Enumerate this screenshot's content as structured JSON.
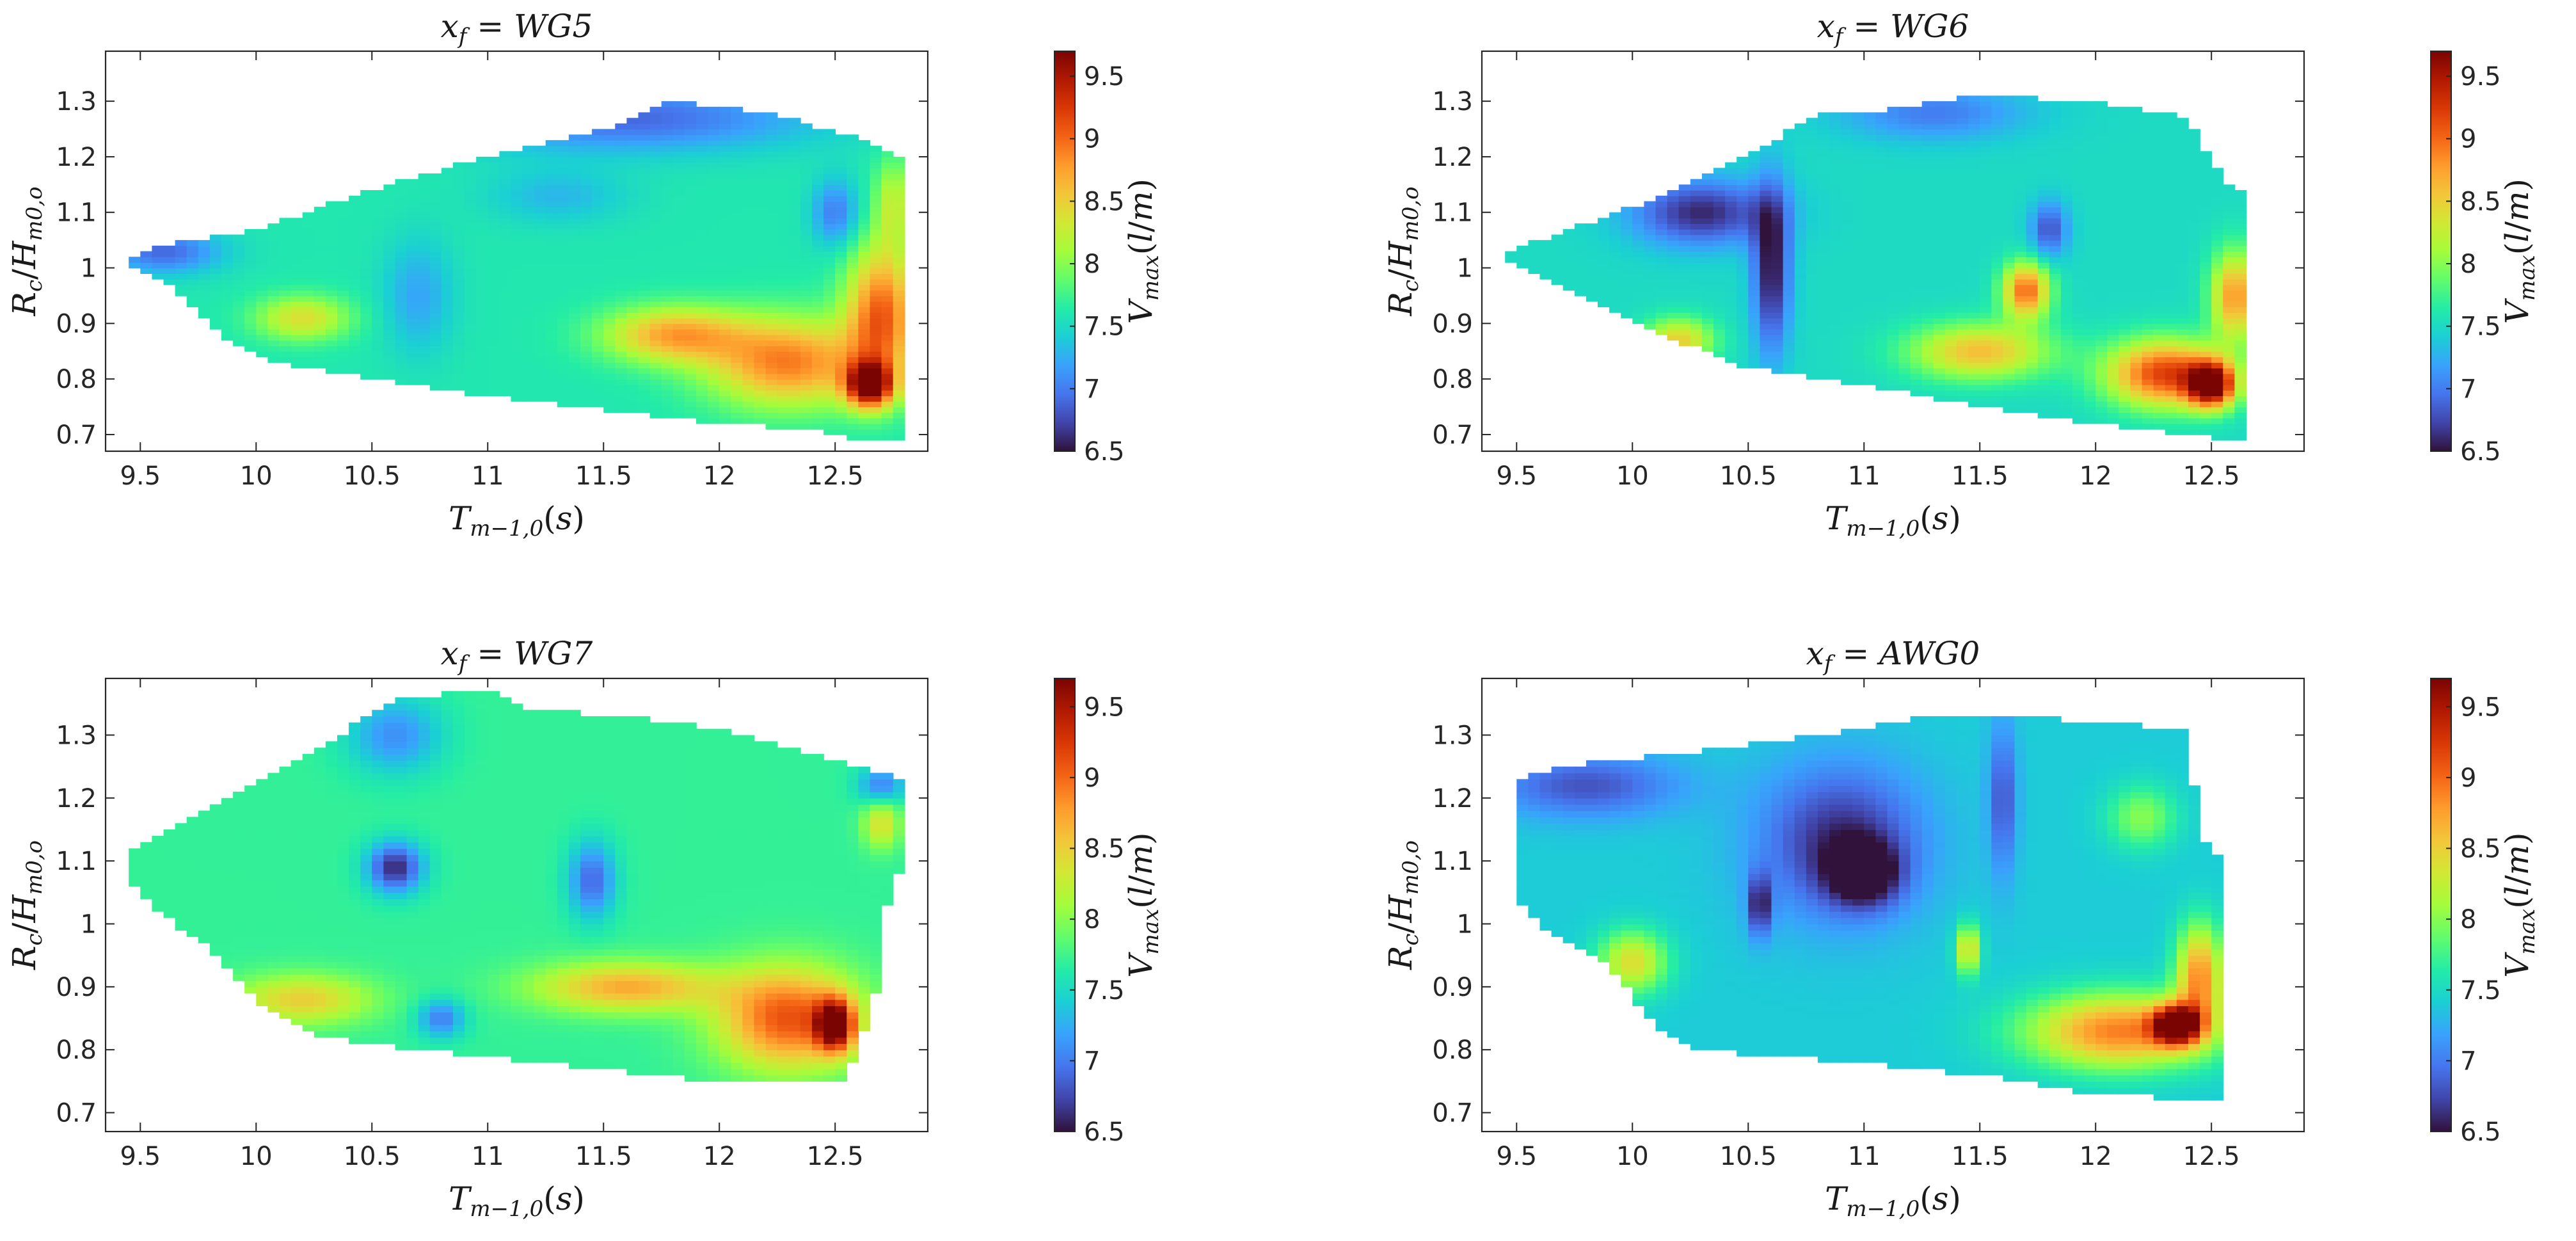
{
  "colormap": {
    "name": "turbo",
    "stops": [
      "#30123b",
      "#4145ab",
      "#4675ed",
      "#39a2fc",
      "#1bcfd4",
      "#24eca6",
      "#61fc6c",
      "#a4fc3b",
      "#d1e834",
      "#f3c63a",
      "#fe9b2d",
      "#f36315",
      "#d93806",
      "#b11901",
      "#7a0402"
    ]
  },
  "colorbar": {
    "label": "V_max(l/m)",
    "ticks": [
      "6.5",
      "7",
      "7.5",
      "8",
      "8.5",
      "9",
      "9.5"
    ]
  },
  "chart_data": [
    {
      "type": "heatmap",
      "title": "x_f = WG5",
      "xlabel": "T_{m-1,0}(s)",
      "ylabel": "R_c/H_{m0,o}",
      "xlim": [
        9.35,
        12.9
      ],
      "ylim": [
        0.67,
        1.39
      ],
      "xticks": [
        9.5,
        10,
        10.5,
        11,
        11.5,
        12,
        12.5
      ],
      "yticks": [
        0.7,
        0.8,
        0.9,
        1.0,
        1.1,
        1.2,
        1.3
      ],
      "clim": [
        6.5,
        9.7
      ],
      "colorbar_ticks": [
        6.5,
        7,
        7.5,
        8,
        8.5,
        9,
        9.5
      ],
      "envelope": {
        "x": [
          9.45,
          12.8
        ],
        "upper": [
          [
            9.45,
            1.02
          ],
          [
            9.6,
            1.04
          ],
          [
            10.0,
            1.07
          ],
          [
            10.5,
            1.14
          ],
          [
            11.0,
            1.2
          ],
          [
            11.5,
            1.25
          ],
          [
            11.8,
            1.3
          ],
          [
            12.2,
            1.28
          ],
          [
            12.55,
            1.24
          ],
          [
            12.8,
            1.2
          ]
        ],
        "lower": [
          [
            9.45,
            1.01
          ],
          [
            9.6,
            0.98
          ],
          [
            9.85,
            0.88
          ],
          [
            10.1,
            0.83
          ],
          [
            10.5,
            0.8
          ],
          [
            11.0,
            0.77
          ],
          [
            11.5,
            0.745
          ],
          [
            12.0,
            0.72
          ],
          [
            12.4,
            0.71
          ],
          [
            12.6,
            0.69
          ],
          [
            12.8,
            0.69
          ]
        ]
      },
      "base": 7.6,
      "features": [
        {
          "x": 9.6,
          "y": 1.03,
          "v": 6.9,
          "sx": 0.25,
          "sy": 0.04
        },
        {
          "x": 11.6,
          "y": 1.27,
          "v": 6.9,
          "sx": 0.8,
          "sy": 0.06
        },
        {
          "x": 11.3,
          "y": 1.13,
          "v": 7.3,
          "sx": 0.3,
          "sy": 0.05
        },
        {
          "x": 10.2,
          "y": 0.91,
          "v": 8.4,
          "sx": 0.2,
          "sy": 0.04
        },
        {
          "x": 11.8,
          "y": 0.88,
          "v": 8.7,
          "sx": 0.3,
          "sy": 0.05
        },
        {
          "x": 12.3,
          "y": 0.83,
          "v": 8.9,
          "sx": 0.35,
          "sy": 0.08
        },
        {
          "x": 12.65,
          "y": 0.79,
          "v": 9.6,
          "sx": 0.1,
          "sy": 0.04
        },
        {
          "x": 12.7,
          "y": 0.92,
          "v": 9.0,
          "sx": 0.15,
          "sy": 0.12
        },
        {
          "x": 12.5,
          "y": 1.1,
          "v": 7.0,
          "sx": 0.1,
          "sy": 0.06
        },
        {
          "x": 12.75,
          "y": 1.12,
          "v": 8.2,
          "sx": 0.08,
          "sy": 0.08
        },
        {
          "x": 10.7,
          "y": 0.95,
          "v": 7.2,
          "sx": 0.15,
          "sy": 0.1
        }
      ]
    },
    {
      "type": "heatmap",
      "title": "x_f = WG6",
      "xlabel": "T_{m-1,0}(s)",
      "ylabel": "R_c/H_{m0,o}",
      "xlim": [
        9.35,
        12.9
      ],
      "ylim": [
        0.67,
        1.39
      ],
      "xticks": [
        9.5,
        10,
        10.5,
        11,
        11.5,
        12,
        12.5
      ],
      "yticks": [
        0.7,
        0.8,
        0.9,
        1.0,
        1.1,
        1.2,
        1.3
      ],
      "clim": [
        6.5,
        9.7
      ],
      "colorbar_ticks": [
        6.5,
        7,
        7.5,
        8,
        8.5,
        9,
        9.5
      ],
      "envelope": {
        "x": [
          9.4,
          12.65
        ],
        "upper": [
          [
            9.4,
            1.02
          ],
          [
            9.6,
            1.05
          ],
          [
            10.0,
            1.11
          ],
          [
            10.5,
            1.2
          ],
          [
            10.8,
            1.28
          ],
          [
            11.0,
            1.28
          ],
          [
            11.5,
            1.31
          ],
          [
            12.0,
            1.3
          ],
          [
            12.4,
            1.27
          ],
          [
            12.55,
            1.16
          ],
          [
            12.65,
            1.13
          ]
        ],
        "lower": [
          [
            9.4,
            1.02
          ],
          [
            9.6,
            0.99
          ],
          [
            10.0,
            0.9
          ],
          [
            10.5,
            0.82
          ],
          [
            11.0,
            0.79
          ],
          [
            11.5,
            0.75
          ],
          [
            12.0,
            0.72
          ],
          [
            12.4,
            0.7
          ],
          [
            12.65,
            0.69
          ]
        ]
      },
      "base": 7.5,
      "features": [
        {
          "x": 10.3,
          "y": 1.1,
          "v": 6.6,
          "sx": 0.3,
          "sy": 0.06
        },
        {
          "x": 10.6,
          "y": 1.0,
          "v": 6.5,
          "sx": 0.08,
          "sy": 0.15
        },
        {
          "x": 10.2,
          "y": 0.87,
          "v": 8.5,
          "sx": 0.15,
          "sy": 0.04
        },
        {
          "x": 11.7,
          "y": 0.96,
          "v": 9.0,
          "sx": 0.1,
          "sy": 0.05
        },
        {
          "x": 11.5,
          "y": 0.85,
          "v": 8.6,
          "sx": 0.3,
          "sy": 0.05
        },
        {
          "x": 12.3,
          "y": 0.81,
          "v": 9.2,
          "sx": 0.25,
          "sy": 0.06
        },
        {
          "x": 12.5,
          "y": 0.79,
          "v": 9.6,
          "sx": 0.1,
          "sy": 0.04
        },
        {
          "x": 12.6,
          "y": 0.95,
          "v": 8.8,
          "sx": 0.1,
          "sy": 0.08
        },
        {
          "x": 11.8,
          "y": 1.07,
          "v": 6.8,
          "sx": 0.08,
          "sy": 0.05
        },
        {
          "x": 11.3,
          "y": 1.28,
          "v": 7.0,
          "sx": 0.4,
          "sy": 0.05
        }
      ]
    },
    {
      "type": "heatmap",
      "title": "x_f = WG7",
      "xlabel": "T_{m-1,0}(s)",
      "ylabel": "R_c/H_{m0,o}",
      "xlim": [
        9.35,
        12.9
      ],
      "ylim": [
        0.67,
        1.39
      ],
      "xticks": [
        9.5,
        10,
        10.5,
        11,
        11.5,
        12,
        12.5
      ],
      "yticks": [
        0.7,
        0.8,
        0.9,
        1.0,
        1.1,
        1.2,
        1.3
      ],
      "clim": [
        6.5,
        9.7
      ],
      "colorbar_ticks": [
        6.5,
        7,
        7.5,
        8,
        8.5,
        9,
        9.5
      ],
      "envelope": {
        "x": [
          9.45,
          12.8
        ],
        "upper": [
          [
            9.45,
            1.12
          ],
          [
            9.8,
            1.18
          ],
          [
            10.2,
            1.26
          ],
          [
            10.6,
            1.36
          ],
          [
            11.0,
            1.37
          ],
          [
            11.2,
            1.34
          ],
          [
            11.6,
            1.33
          ],
          [
            12.0,
            1.31
          ],
          [
            12.4,
            1.27
          ],
          [
            12.6,
            1.25
          ],
          [
            12.8,
            1.23
          ]
        ],
        "lower": [
          [
            9.45,
            1.07
          ],
          [
            9.55,
            1.03
          ],
          [
            9.8,
            0.96
          ],
          [
            10.0,
            0.88
          ],
          [
            10.2,
            0.83
          ],
          [
            10.5,
            0.81
          ],
          [
            11.0,
            0.79
          ],
          [
            11.5,
            0.77
          ],
          [
            12.0,
            0.75
          ],
          [
            12.55,
            0.75
          ],
          [
            12.6,
            0.8
          ],
          [
            12.7,
            0.92
          ],
          [
            12.7,
            1.0
          ],
          [
            12.8,
            1.1
          ]
        ]
      },
      "base": 7.7,
      "features": [
        {
          "x": 10.6,
          "y": 1.09,
          "v": 6.6,
          "sx": 0.12,
          "sy": 0.04
        },
        {
          "x": 10.6,
          "y": 1.3,
          "v": 7.1,
          "sx": 0.2,
          "sy": 0.06
        },
        {
          "x": 11.45,
          "y": 1.07,
          "v": 6.9,
          "sx": 0.1,
          "sy": 0.06
        },
        {
          "x": 10.2,
          "y": 0.88,
          "v": 8.5,
          "sx": 0.3,
          "sy": 0.04
        },
        {
          "x": 11.6,
          "y": 0.9,
          "v": 8.7,
          "sx": 0.4,
          "sy": 0.04
        },
        {
          "x": 12.3,
          "y": 0.85,
          "v": 9.1,
          "sx": 0.3,
          "sy": 0.08
        },
        {
          "x": 12.5,
          "y": 0.84,
          "v": 9.5,
          "sx": 0.08,
          "sy": 0.04
        },
        {
          "x": 12.7,
          "y": 1.16,
          "v": 8.4,
          "sx": 0.08,
          "sy": 0.04
        },
        {
          "x": 12.7,
          "y": 1.22,
          "v": 7.0,
          "sx": 0.1,
          "sy": 0.03
        },
        {
          "x": 10.8,
          "y": 0.85,
          "v": 7.0,
          "sx": 0.1,
          "sy": 0.03
        }
      ]
    },
    {
      "type": "heatmap",
      "title": "x_f = AWG0",
      "xlabel": "T_{m-1,0}(s)",
      "ylabel": "R_c/H_{m0,o}",
      "xlim": [
        9.35,
        12.9
      ],
      "ylim": [
        0.67,
        1.39
      ],
      "xticks": [
        9.5,
        10,
        10.5,
        11,
        11.5,
        12,
        12.5
      ],
      "yticks": [
        0.7,
        0.8,
        0.9,
        1.0,
        1.1,
        1.2,
        1.3
      ],
      "clim": [
        6.5,
        9.7
      ],
      "colorbar_ticks": [
        6.5,
        7,
        7.5,
        8,
        8.5,
        9,
        9.5
      ],
      "envelope": {
        "x": [
          9.5,
          12.55
        ],
        "upper": [
          [
            9.5,
            1.23
          ],
          [
            9.7,
            1.25
          ],
          [
            10.2,
            1.27
          ],
          [
            10.8,
            1.3
          ],
          [
            11.3,
            1.33
          ],
          [
            11.7,
            1.33
          ],
          [
            12.0,
            1.32
          ],
          [
            12.4,
            1.31
          ],
          [
            12.45,
            1.14
          ],
          [
            12.55,
            1.1
          ]
        ],
        "lower": [
          [
            9.5,
            1.04
          ],
          [
            9.6,
            1.0
          ],
          [
            9.9,
            0.93
          ],
          [
            10.1,
            0.84
          ],
          [
            10.3,
            0.8
          ],
          [
            11.0,
            0.78
          ],
          [
            11.5,
            0.76
          ],
          [
            12.0,
            0.73
          ],
          [
            12.55,
            0.72
          ]
        ]
      },
      "base": 7.4,
      "features": [
        {
          "x": 9.8,
          "y": 1.22,
          "v": 6.8,
          "sx": 0.4,
          "sy": 0.05
        },
        {
          "x": 10.9,
          "y": 1.13,
          "v": 6.6,
          "sx": 0.35,
          "sy": 0.12
        },
        {
          "x": 11.0,
          "y": 1.08,
          "v": 6.5,
          "sx": 0.15,
          "sy": 0.05
        },
        {
          "x": 10.55,
          "y": 1.03,
          "v": 6.6,
          "sx": 0.05,
          "sy": 0.05
        },
        {
          "x": 11.6,
          "y": 1.2,
          "v": 6.8,
          "sx": 0.06,
          "sy": 0.12
        },
        {
          "x": 10.0,
          "y": 0.94,
          "v": 8.4,
          "sx": 0.15,
          "sy": 0.05
        },
        {
          "x": 11.45,
          "y": 0.96,
          "v": 8.5,
          "sx": 0.05,
          "sy": 0.04
        },
        {
          "x": 12.1,
          "y": 0.83,
          "v": 8.9,
          "sx": 0.4,
          "sy": 0.06
        },
        {
          "x": 12.35,
          "y": 0.84,
          "v": 9.6,
          "sx": 0.1,
          "sy": 0.03
        },
        {
          "x": 12.45,
          "y": 0.92,
          "v": 8.8,
          "sx": 0.1,
          "sy": 0.08
        },
        {
          "x": 12.2,
          "y": 1.17,
          "v": 8.0,
          "sx": 0.15,
          "sy": 0.05
        }
      ]
    }
  ]
}
